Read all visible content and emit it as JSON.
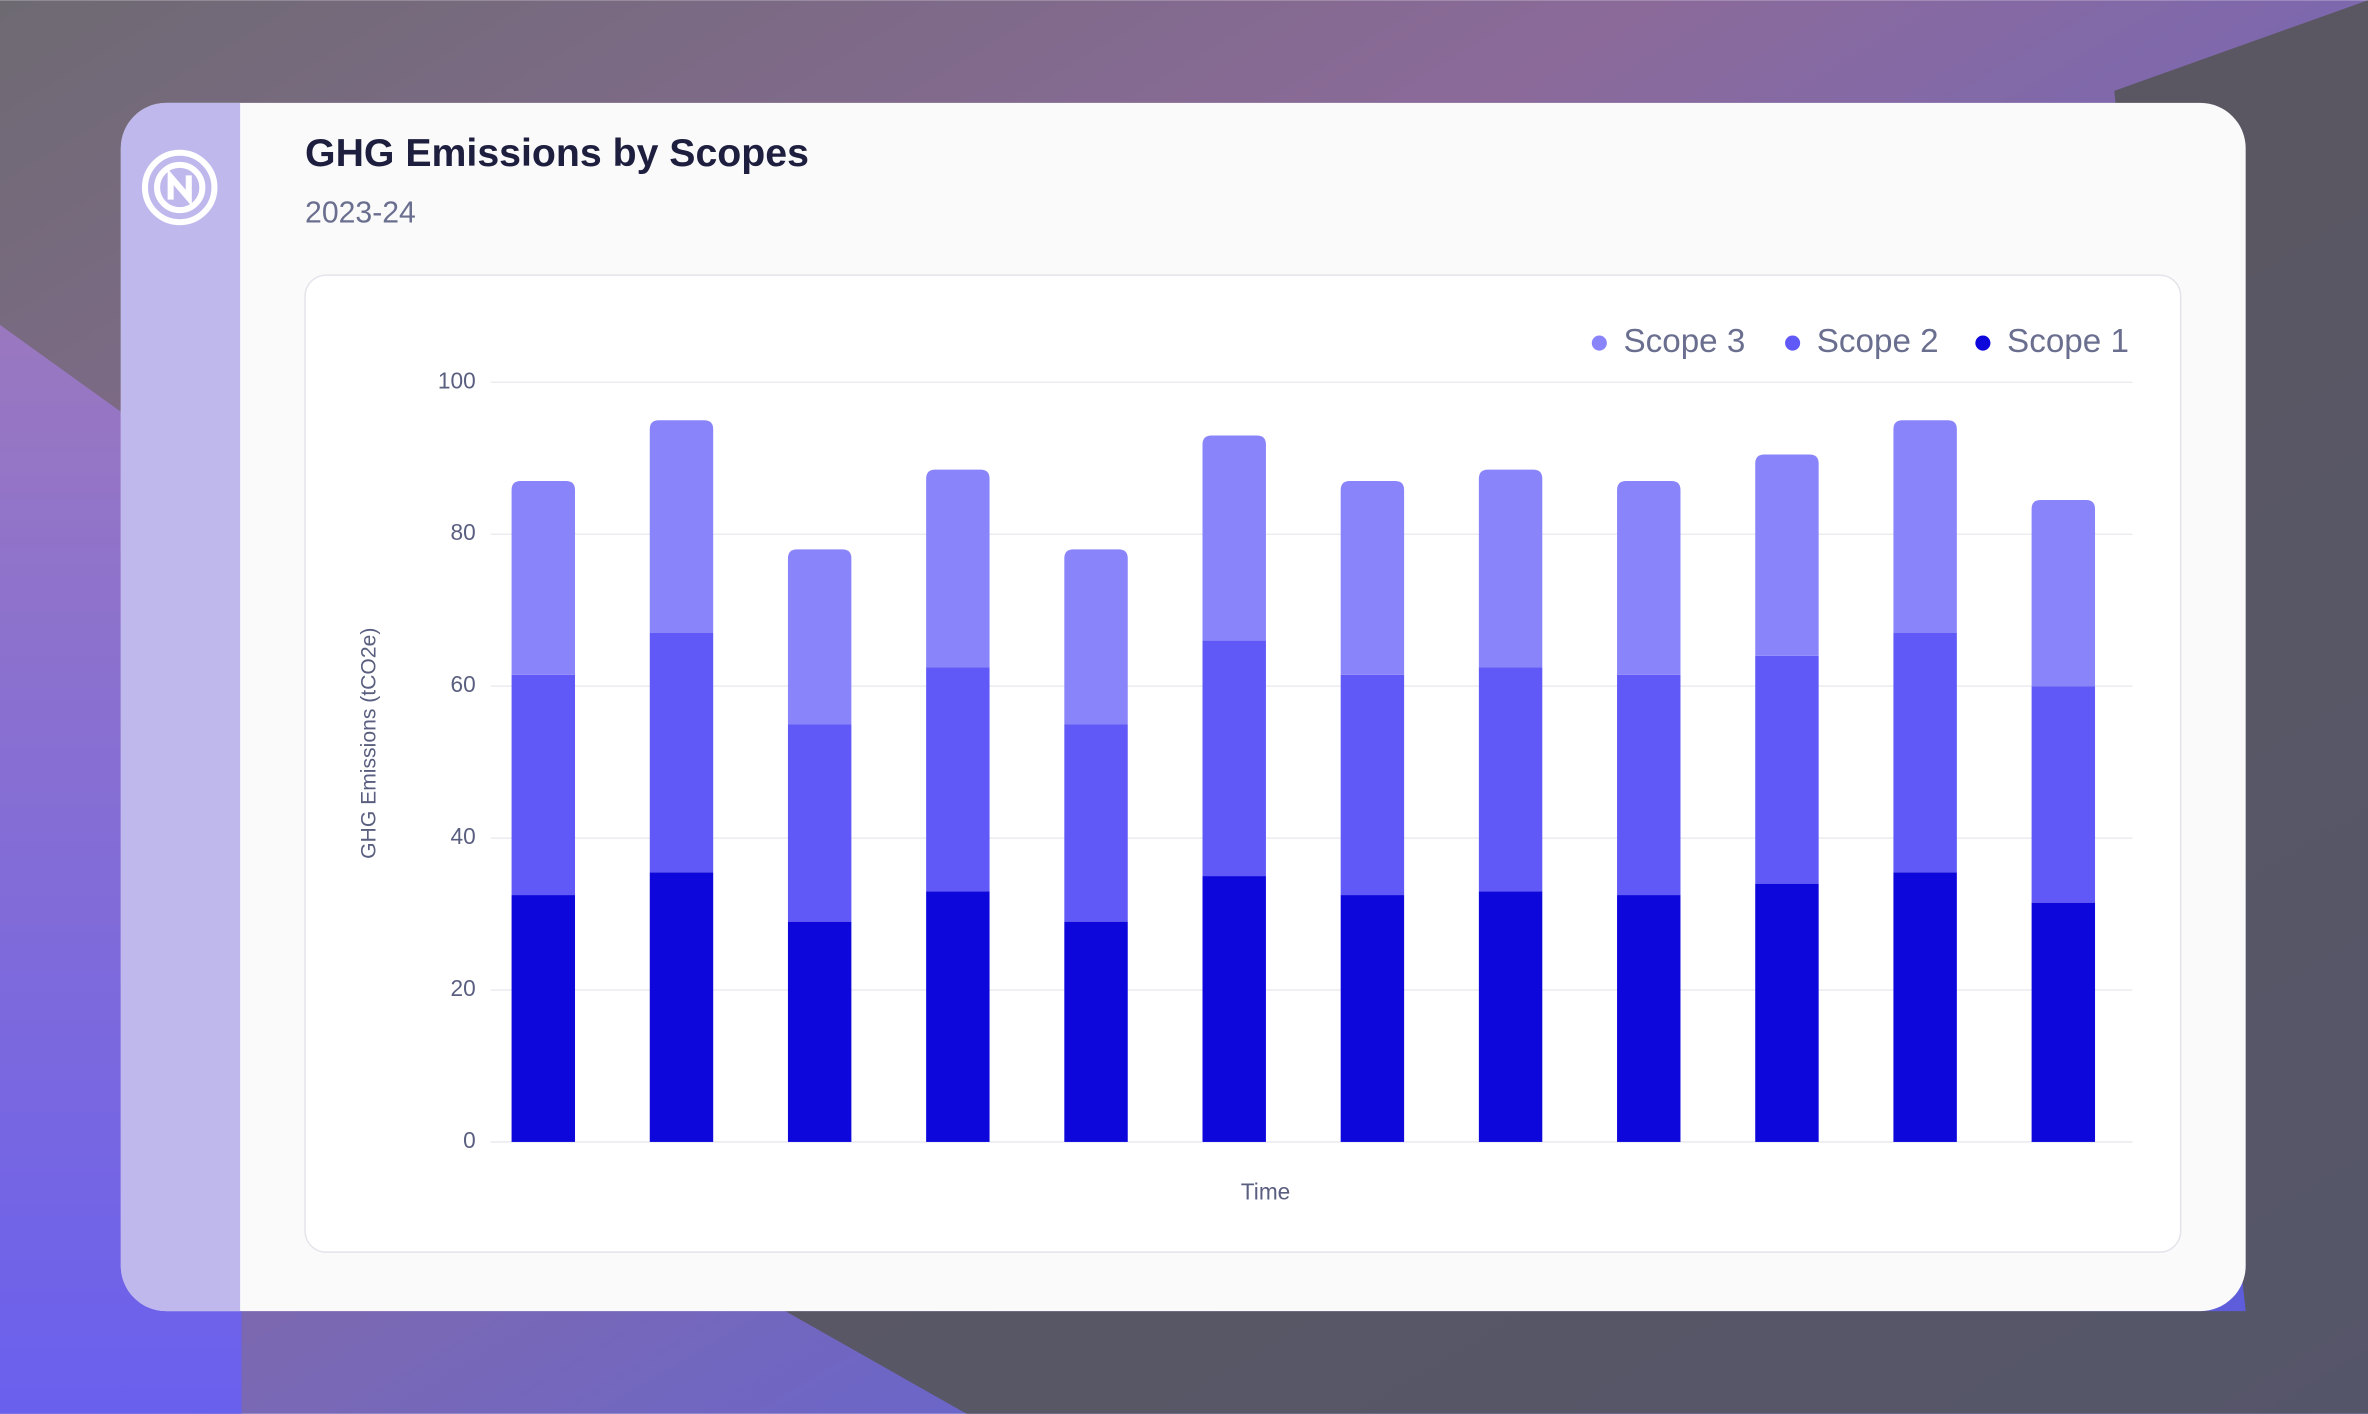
{
  "chart_data": {
    "type": "bar",
    "stacked": true,
    "title": "GHG Emissions by Scopes",
    "subtitle": "2023-24",
    "x_label": "Time",
    "y_label": "GHG Emissions (tCO2e)",
    "categories": [
      null,
      null,
      null,
      null,
      null,
      null,
      null,
      null,
      null,
      null,
      null,
      null
    ],
    "series": [
      {
        "name": "Scope 3",
        "color": "#8a84fb",
        "values": [
          25.5,
          28,
          23,
          26,
          23,
          27,
          25.5,
          26,
          25.5,
          26.5,
          28,
          24.5
        ]
      },
      {
        "name": "Scope 2",
        "color": "#6059f7",
        "values": [
          29,
          31.5,
          26,
          29.5,
          26,
          31,
          29,
          29.5,
          29,
          30,
          31.5,
          28.5
        ]
      },
      {
        "name": "Scope 1",
        "color": "#0e07dc",
        "values": [
          32.5,
          35.5,
          29,
          33,
          29,
          35,
          32.5,
          33,
          32.5,
          34,
          35.5,
          31.5
        ]
      }
    ],
    "ylim": [
      0,
      100
    ],
    "yticks": [
      0,
      20,
      40,
      60,
      80,
      100
    ],
    "grid": true,
    "legend": "top-right"
  }
}
